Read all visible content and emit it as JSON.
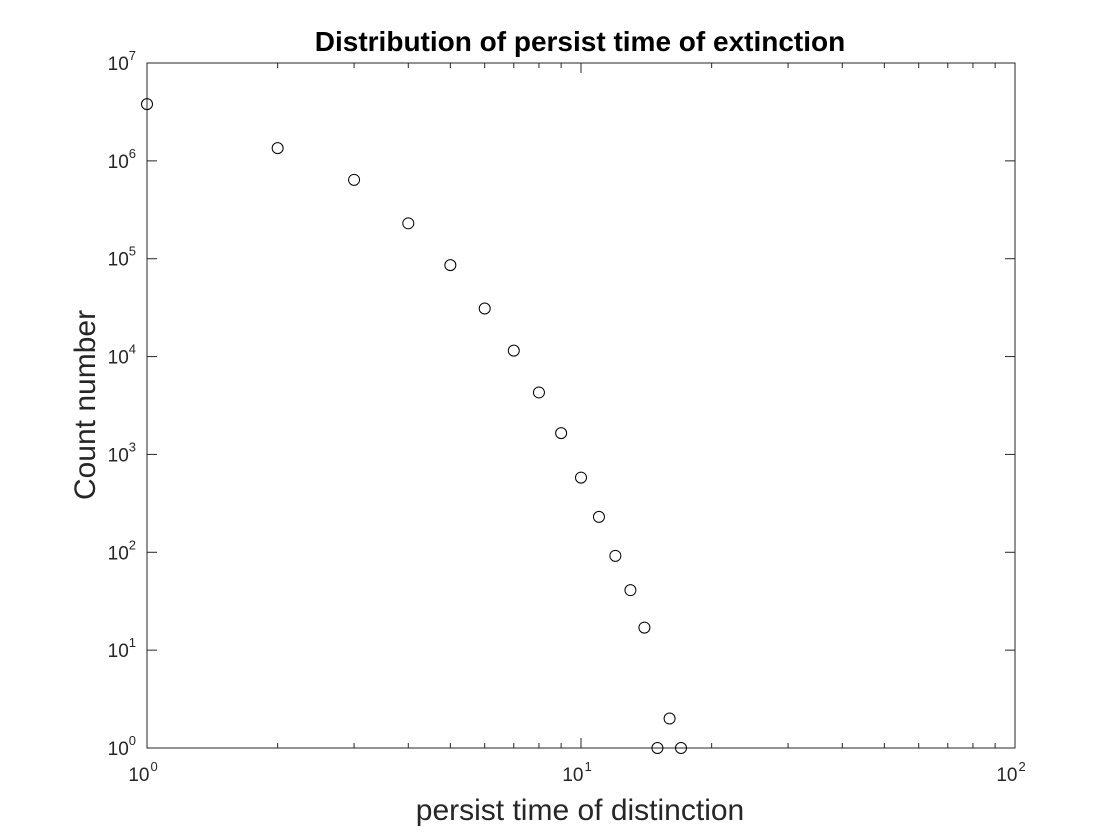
{
  "chart_data": {
    "type": "scatter",
    "title": "Distribution of persist time of extinction",
    "xlabel": "persist time of distinction",
    "ylabel": "Count number",
    "xscale": "log",
    "yscale": "log",
    "xlim": [
      1,
      100
    ],
    "ylim": [
      1,
      10000000
    ],
    "grid": false,
    "marker": "open-circle",
    "marker_color": "#000000",
    "x_ticks": [
      {
        "base": "10",
        "exp": "0"
      },
      {
        "base": "10",
        "exp": "1"
      },
      {
        "base": "10",
        "exp": "2"
      }
    ],
    "y_ticks": [
      {
        "base": "10",
        "exp": "0"
      },
      {
        "base": "10",
        "exp": "1"
      },
      {
        "base": "10",
        "exp": "2"
      },
      {
        "base": "10",
        "exp": "3"
      },
      {
        "base": "10",
        "exp": "4"
      },
      {
        "base": "10",
        "exp": "5"
      },
      {
        "base": "10",
        "exp": "6"
      },
      {
        "base": "10",
        "exp": "7"
      }
    ],
    "points": [
      {
        "x": 1,
        "y": 3800000
      },
      {
        "x": 2,
        "y": 1350000
      },
      {
        "x": 3,
        "y": 640000
      },
      {
        "x": 4,
        "y": 230000
      },
      {
        "x": 5,
        "y": 86000
      },
      {
        "x": 6,
        "y": 31000
      },
      {
        "x": 7,
        "y": 11500
      },
      {
        "x": 8,
        "y": 4300
      },
      {
        "x": 9,
        "y": 1650
      },
      {
        "x": 10,
        "y": 580
      },
      {
        "x": 11,
        "y": 230
      },
      {
        "x": 12,
        "y": 92
      },
      {
        "x": 13,
        "y": 41
      },
      {
        "x": 14,
        "y": 17
      },
      {
        "x": 15,
        "y": 1
      },
      {
        "x": 16,
        "y": 2
      },
      {
        "x": 17,
        "y": 1
      }
    ]
  }
}
